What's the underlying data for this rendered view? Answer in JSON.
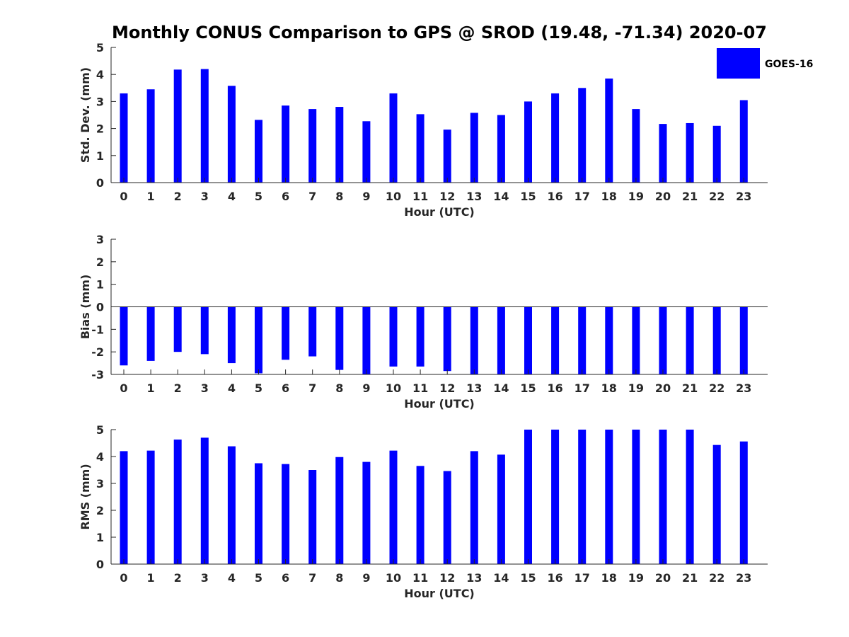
{
  "title": "Monthly CONUS Comparison to GPS @ SROD (19.48, -71.34) 2020-07",
  "legend": {
    "label": "GOES-16"
  },
  "colors": {
    "bar": "#0000ff",
    "axis": "#262626"
  },
  "chart_data": [
    {
      "type": "bar",
      "name": "std-dev",
      "categories": [
        "0",
        "1",
        "2",
        "3",
        "4",
        "5",
        "6",
        "7",
        "8",
        "9",
        "10",
        "11",
        "12",
        "13",
        "14",
        "15",
        "16",
        "17",
        "18",
        "19",
        "20",
        "21",
        "22",
        "23"
      ],
      "series": [
        {
          "name": "GOES-16",
          "values": [
            3.3,
            3.45,
            4.18,
            4.2,
            3.58,
            2.32,
            2.85,
            2.72,
            2.8,
            2.27,
            3.3,
            2.53,
            1.96,
            2.58,
            2.5,
            3.0,
            3.3,
            3.5,
            3.85,
            2.72,
            2.17,
            2.2,
            2.1,
            3.05
          ]
        }
      ],
      "xlabel": "Hour (UTC)",
      "ylabel": "Std. Dev. (mm)",
      "ylim": [
        0,
        5
      ],
      "yticks": [
        "0",
        "1",
        "2",
        "3",
        "4",
        "5"
      ]
    },
    {
      "type": "bar",
      "name": "bias",
      "categories": [
        "0",
        "1",
        "2",
        "3",
        "4",
        "5",
        "6",
        "7",
        "8",
        "9",
        "10",
        "11",
        "12",
        "13",
        "14",
        "15",
        "16",
        "17",
        "18",
        "19",
        "20",
        "21",
        "22",
        "23"
      ],
      "series": [
        {
          "name": "GOES-16",
          "values": [
            -2.6,
            -2.4,
            -2.0,
            -2.1,
            -2.5,
            -2.95,
            -2.35,
            -2.2,
            -2.8,
            -3.0,
            -2.65,
            -2.65,
            -2.85,
            -3.0,
            -3.0,
            -3.0,
            -3.0,
            -3.0,
            -3.0,
            -3.0,
            -3.0,
            -3.0,
            -3.0,
            -3.0
          ]
        }
      ],
      "xlabel": "Hour (UTC)",
      "ylabel": "Bias (mm)",
      "ylim": [
        -3,
        3
      ],
      "yticks": [
        "-3",
        "-2",
        "-1",
        "0",
        "1",
        "2",
        "3"
      ]
    },
    {
      "type": "bar",
      "name": "rms",
      "categories": [
        "0",
        "1",
        "2",
        "3",
        "4",
        "5",
        "6",
        "7",
        "8",
        "9",
        "10",
        "11",
        "12",
        "13",
        "14",
        "15",
        "16",
        "17",
        "18",
        "19",
        "20",
        "21",
        "22",
        "23"
      ],
      "series": [
        {
          "name": "GOES-16",
          "values": [
            4.2,
            4.22,
            4.63,
            4.7,
            4.38,
            3.75,
            3.72,
            3.5,
            3.98,
            3.8,
            4.22,
            3.65,
            3.46,
            4.2,
            4.07,
            5.0,
            5.0,
            5.0,
            5.0,
            5.0,
            5.0,
            5.0,
            4.43,
            4.56
          ]
        }
      ],
      "xlabel": "Hour (UTC)",
      "ylabel": "RMS (mm)",
      "ylim": [
        0,
        5
      ],
      "yticks": [
        "0",
        "1",
        "2",
        "3",
        "4",
        "5"
      ]
    }
  ]
}
